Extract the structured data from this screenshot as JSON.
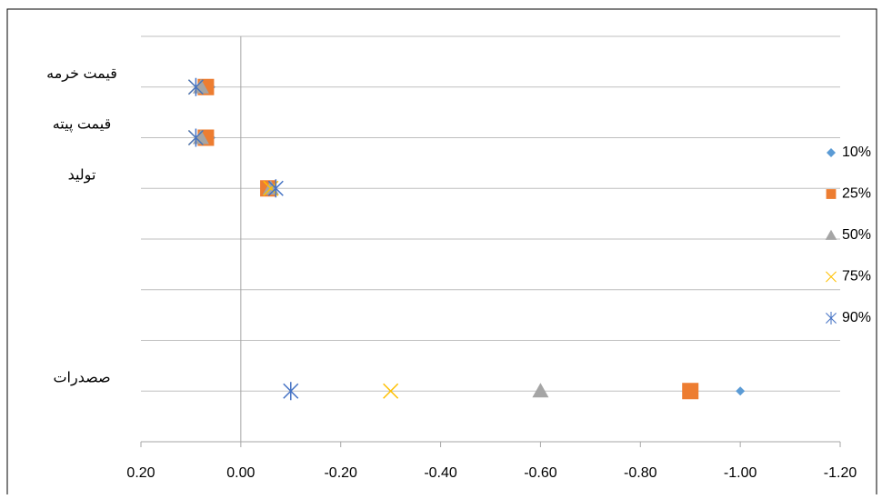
{
  "chart_data": {
    "type": "scatter",
    "xlim": [
      0.2,
      -1.2
    ],
    "xticks": [
      {
        "value": 0.2,
        "label": "0.20"
      },
      {
        "value": 0,
        "label": "0.00"
      },
      {
        "value": -0.2,
        "label": "-0.20"
      },
      {
        "value": -0.4,
        "label": "-0.40"
      },
      {
        "value": -0.6,
        "label": "-0.60"
      },
      {
        "value": -0.8,
        "label": "-0.80"
      },
      {
        "value": -1.0,
        "label": "-1.00"
      },
      {
        "value": -1.2,
        "label": "-1.20"
      }
    ],
    "ylim": [
      0,
      8
    ],
    "yticks": [
      0,
      1,
      2,
      3,
      4,
      5,
      6,
      7,
      8
    ],
    "grid": true,
    "legend": "right",
    "annotations": [
      {
        "text": "قیمت خرمه",
        "y": 7
      },
      {
        "text": "قیمت پیته",
        "y": 6
      },
      {
        "text": "تولید",
        "y": 5
      },
      {
        "text": "صصدرات",
        "y": 1
      }
    ],
    "series": [
      {
        "name": "10%",
        "color": "#5b9bd5",
        "marker": "diamond",
        "x": [
          0.06,
          0.06,
          -0.05,
          -1.0
        ],
        "y": [
          7,
          6,
          5,
          1
        ]
      },
      {
        "name": "25%",
        "color": "#ed7d31",
        "marker": "square",
        "x": [
          0.07,
          0.07,
          -0.055,
          -0.9
        ],
        "y": [
          7,
          6,
          5,
          1
        ]
      },
      {
        "name": "50%",
        "color": "#a5a5a5",
        "marker": "triangle",
        "x": [
          0.08,
          0.08,
          -0.06,
          -0.6
        ],
        "y": [
          7,
          6,
          5,
          1
        ]
      },
      {
        "name": "75%",
        "color": "#ffc000",
        "marker": "x",
        "x": [
          0.09,
          0.09,
          -0.06,
          -0.3
        ],
        "y": [
          7,
          6,
          5,
          1
        ]
      },
      {
        "name": "90%",
        "color": "#4472c4",
        "marker": "star",
        "x": [
          0.09,
          0.09,
          -0.07,
          -0.1
        ],
        "y": [
          7,
          6,
          5,
          1
        ]
      }
    ]
  }
}
